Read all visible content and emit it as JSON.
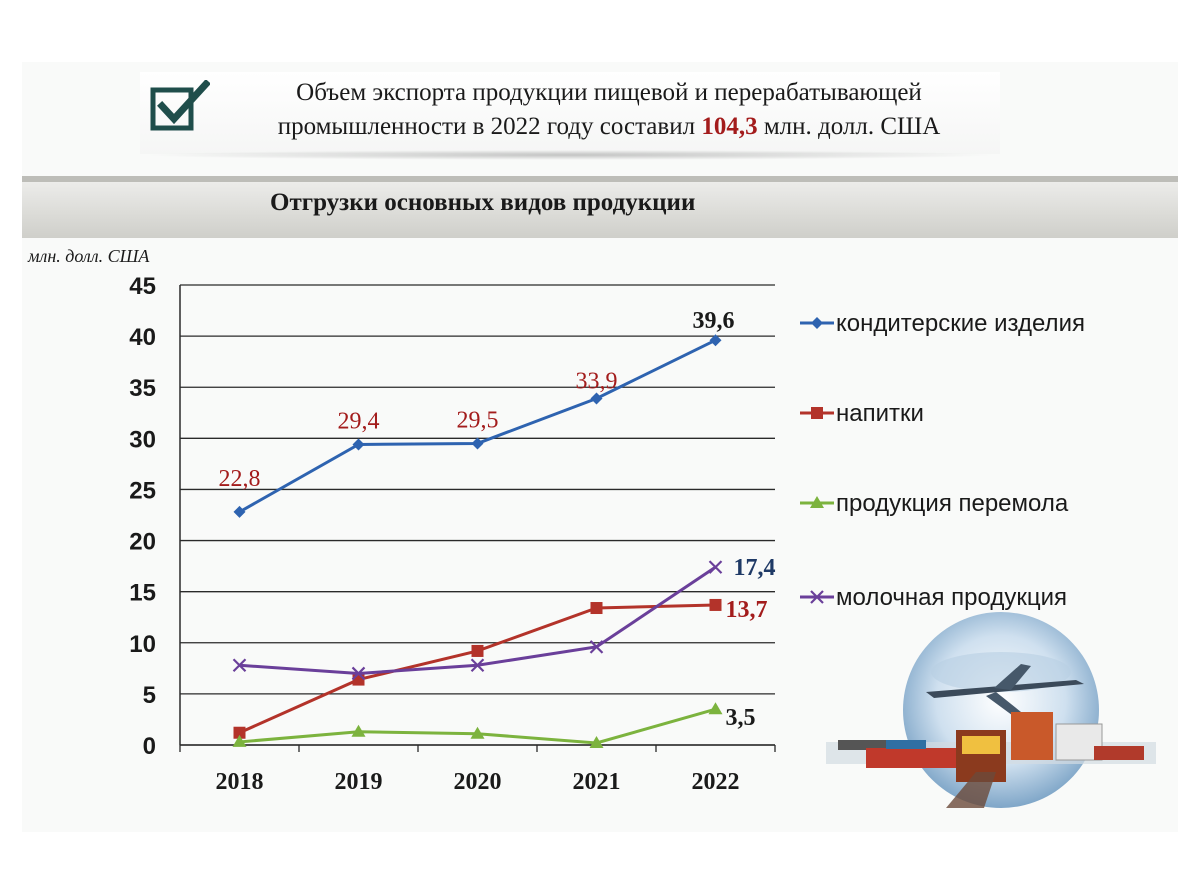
{
  "header": {
    "text_before": "Объем экспорта продукции пищевой и перерабатывающей промышленности в 2022 году составил ",
    "highlight": "104,3",
    "text_after": " млн. долл. США",
    "check_color": "#1f4e4b",
    "highlight_color": "#a31c1c"
  },
  "section_title": "Отгрузки основных видов продукции",
  "chart_data": {
    "type": "line",
    "title": "",
    "ylabel": "млн. долл. США",
    "xlabel": "",
    "ylim": [
      0,
      45
    ],
    "yticks": [
      "0",
      "5",
      "10",
      "15",
      "20",
      "25",
      "30",
      "35",
      "40",
      "45"
    ],
    "categories": [
      "2018",
      "2019",
      "2020",
      "2021",
      "2022"
    ],
    "grid": "horizontal",
    "legend": "right",
    "series": [
      {
        "name": "кондитерские изделия",
        "color": "#2e63b0",
        "marker": "diamond",
        "values": [
          22.8,
          29.4,
          29.5,
          33.9,
          39.6
        ],
        "labels": [
          "22,8",
          "29,4",
          "29,5",
          "33,9",
          "39,6"
        ]
      },
      {
        "name": "напитки",
        "color": "#b3332a",
        "marker": "square",
        "values": [
          1.2,
          6.4,
          9.2,
          13.4,
          13.7
        ],
        "labels": [
          "",
          "",
          "",
          "",
          "13,7"
        ]
      },
      {
        "name": "продукция перемола",
        "color": "#7cb33e",
        "marker": "triangle",
        "values": [
          0.3,
          1.3,
          1.1,
          0.2,
          3.5
        ],
        "labels": [
          "",
          "",
          "",
          "",
          "3,5"
        ]
      },
      {
        "name": "молочная продукция",
        "color": "#6a3f9a",
        "marker": "x",
        "values": [
          7.8,
          7.0,
          7.8,
          9.6,
          17.4
        ],
        "labels": [
          "",
          "",
          "",
          "",
          "17,4"
        ]
      }
    ]
  }
}
